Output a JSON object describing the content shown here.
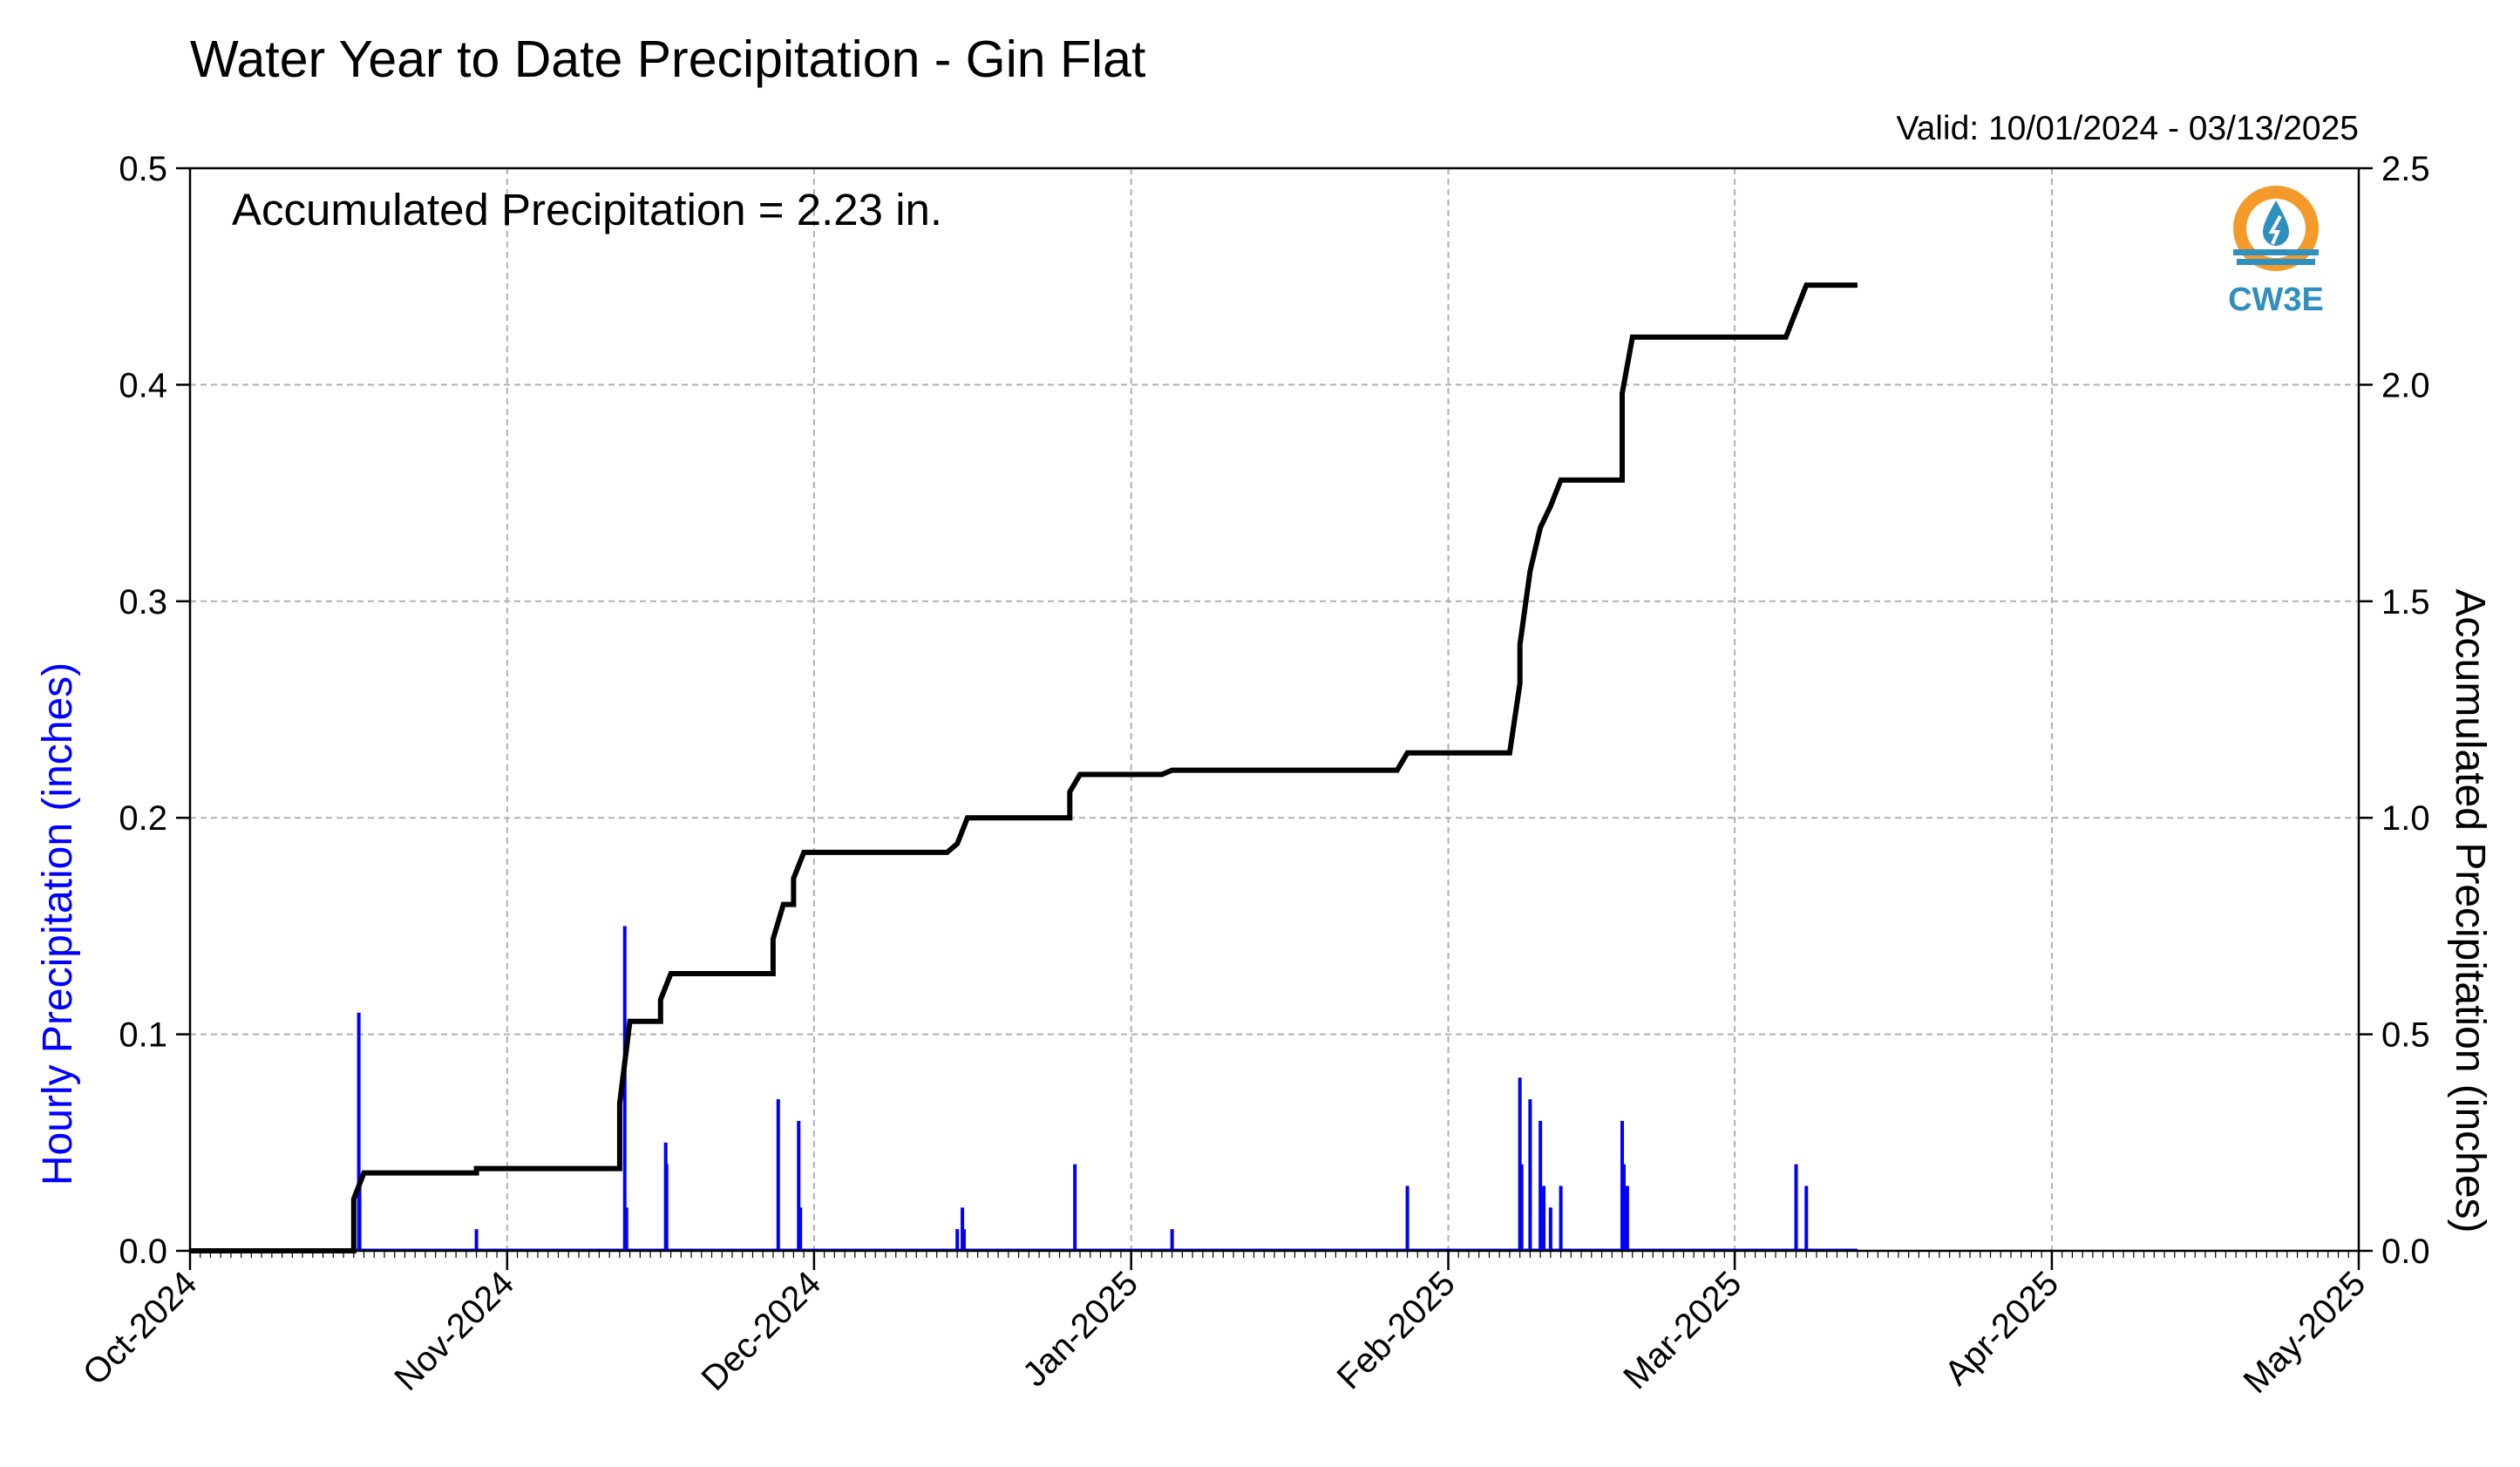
{
  "chart_data": {
    "type": "bar+line",
    "title": "Water Year to Date Precipitation - Gin Flat",
    "valid_range": "Valid: 10/01/2024 - 03/13/2025",
    "annotation": "Accumulated Precipitation = 2.23 in.",
    "logo_text": "CW3E",
    "ylabel_left": "Hourly Precipitation (inches)",
    "ylabel_right": "Accumulated Precipitation (inches)",
    "ylim_left": [
      0,
      0.5
    ],
    "ylim_right": [
      0,
      2.5
    ],
    "yticks_left": [
      "0.0",
      "0.1",
      "0.2",
      "0.3",
      "0.4",
      "0.5"
    ],
    "yticks_right": [
      "0.0",
      "0.5",
      "1.0",
      "1.5",
      "2.0",
      "2.5"
    ],
    "x_range": [
      "2024-10-01",
      "2025-05-01"
    ],
    "xtick_labels": [
      "Oct-2024",
      "Nov-2024",
      "Dec-2024",
      "Jan-2025",
      "Feb-2025",
      "Mar-2025",
      "Apr-2025",
      "May-2025"
    ],
    "xtick_dates": [
      "2024-10-01",
      "2024-11-01",
      "2024-12-01",
      "2025-01-01",
      "2025-02-01",
      "2025-03-01",
      "2025-04-01",
      "2025-05-01"
    ],
    "grid": true,
    "colors": {
      "hourly": "#0000ff",
      "accumulated": "#000000",
      "grid": "#b0b0b0",
      "logo_orange": "#f39a2b",
      "logo_blue": "#2f8fbf"
    },
    "series": [
      {
        "name": "Hourly Precipitation",
        "axis": "left",
        "type": "bar",
        "points": [
          [
            "2024-10-17T12",
            0.11
          ],
          [
            "2024-10-17T14",
            0.03
          ],
          [
            "2024-10-29T00",
            0.01
          ],
          [
            "2024-11-12T12",
            0.15
          ],
          [
            "2024-11-12T16",
            0.02
          ],
          [
            "2024-11-16T12",
            0.05
          ],
          [
            "2024-11-16T14",
            0.04
          ],
          [
            "2024-11-27T12",
            0.07
          ],
          [
            "2024-11-29T12",
            0.06
          ],
          [
            "2024-11-29T16",
            0.02
          ],
          [
            "2024-12-15T00",
            0.01
          ],
          [
            "2024-12-15T12",
            0.02
          ],
          [
            "2024-12-15T16",
            0.01
          ],
          [
            "2024-12-26T12",
            0.04
          ],
          [
            "2025-01-05T00",
            0.01
          ],
          [
            "2025-01-28T00",
            0.03
          ],
          [
            "2025-02-08T00",
            0.08
          ],
          [
            "2025-02-08T04",
            0.04
          ],
          [
            "2025-02-09T00",
            0.07
          ],
          [
            "2025-02-10T00",
            0.06
          ],
          [
            "2025-02-10T08",
            0.03
          ],
          [
            "2025-02-11T00",
            0.02
          ],
          [
            "2025-02-12T00",
            0.03
          ],
          [
            "2025-02-18T00",
            0.06
          ],
          [
            "2025-02-18T04",
            0.04
          ],
          [
            "2025-02-18T12",
            0.03
          ],
          [
            "2025-03-07T00",
            0.04
          ],
          [
            "2025-03-08T00",
            0.03
          ]
        ]
      },
      {
        "name": "Accumulated Precipitation",
        "axis": "right",
        "type": "step-line",
        "points": [
          [
            "2024-10-01",
            0.0
          ],
          [
            "2024-10-17",
            0.0
          ],
          [
            "2024-10-17",
            0.12
          ],
          [
            "2024-10-18",
            0.18
          ],
          [
            "2024-10-29",
            0.18
          ],
          [
            "2024-10-29",
            0.19
          ],
          [
            "2024-11-12",
            0.19
          ],
          [
            "2024-11-12",
            0.34
          ],
          [
            "2024-11-13",
            0.53
          ],
          [
            "2024-11-16",
            0.53
          ],
          [
            "2024-11-16",
            0.58
          ],
          [
            "2024-11-17",
            0.64
          ],
          [
            "2024-11-27",
            0.64
          ],
          [
            "2024-11-27",
            0.72
          ],
          [
            "2024-11-28",
            0.8
          ],
          [
            "2024-11-29",
            0.8
          ],
          [
            "2024-11-29",
            0.86
          ],
          [
            "2024-11-30",
            0.92
          ],
          [
            "2024-12-14",
            0.92
          ],
          [
            "2024-12-15",
            0.94
          ],
          [
            "2024-12-16",
            1.0
          ],
          [
            "2024-12-26",
            1.0
          ],
          [
            "2024-12-26",
            1.06
          ],
          [
            "2024-12-27",
            1.1
          ],
          [
            "2025-01-04",
            1.1
          ],
          [
            "2025-01-05",
            1.11
          ],
          [
            "2025-01-27",
            1.11
          ],
          [
            "2025-01-28",
            1.15
          ],
          [
            "2025-02-07",
            1.15
          ],
          [
            "2025-02-08",
            1.31
          ],
          [
            "2025-02-08",
            1.4
          ],
          [
            "2025-02-09",
            1.57
          ],
          [
            "2025-02-10",
            1.67
          ],
          [
            "2025-02-11",
            1.72
          ],
          [
            "2025-02-12",
            1.78
          ],
          [
            "2025-02-18",
            1.78
          ],
          [
            "2025-02-18",
            1.98
          ],
          [
            "2025-02-19",
            2.11
          ],
          [
            "2025-03-06",
            2.11
          ],
          [
            "2025-03-07",
            2.17
          ],
          [
            "2025-03-08",
            2.23
          ],
          [
            "2025-03-13",
            2.23
          ]
        ]
      }
    ]
  }
}
